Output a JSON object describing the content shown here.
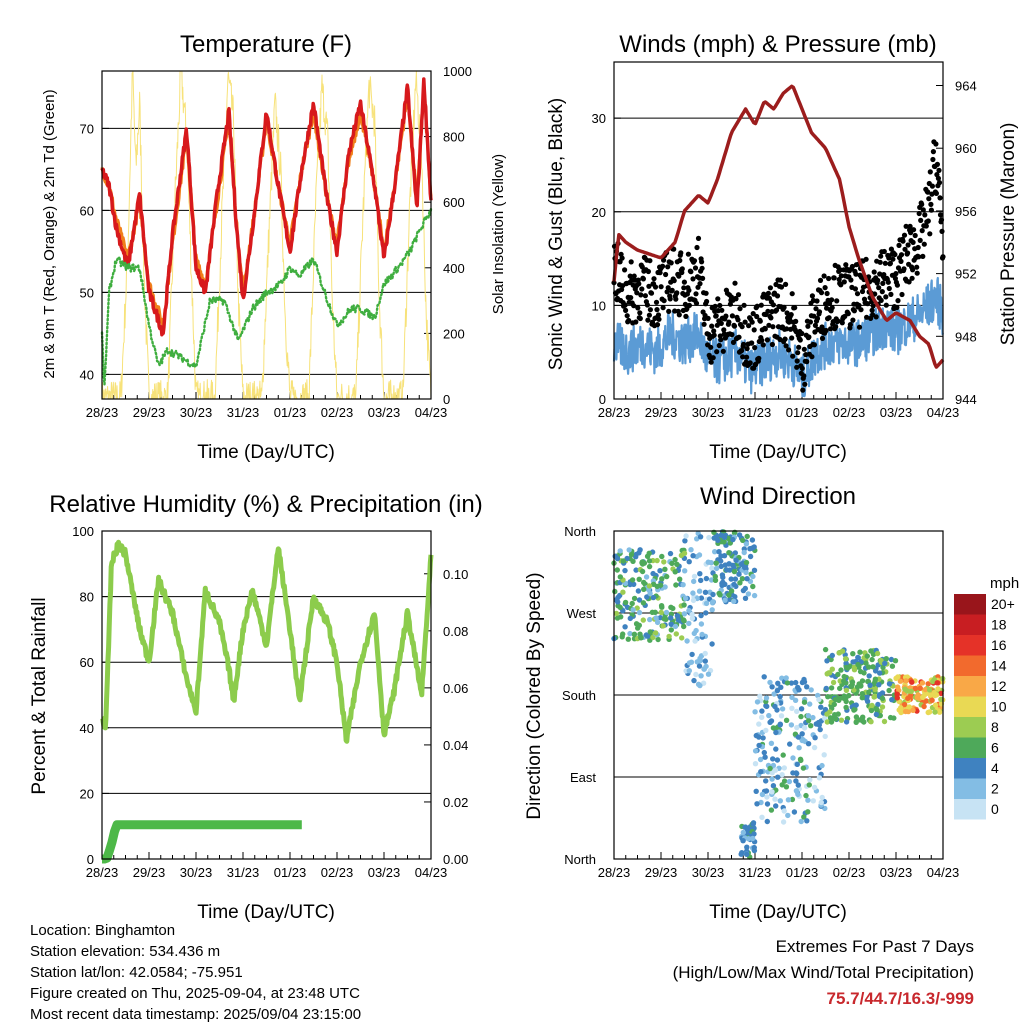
{
  "colors": {
    "temp_2m": "#d7191c",
    "temp_9m": "#f07f1a",
    "dewpoint": "#3fae3f",
    "solar": "#f7e27a",
    "wind": "#5b9bd5",
    "gust": "#000000",
    "pressure": "#9c1d1d",
    "rh": "#8ccc4c",
    "precip": "#4db848",
    "extremes": "#c8282d"
  },
  "charts": {
    "temperature": {
      "title": "Temperature (F)",
      "xlabel": "Time (Day/UTC)",
      "ylabel_left": "2m & 9m T (Red, Orange) & 2m Td (Green)",
      "ylabel_right": "Solar Insolation (Yellow)"
    },
    "wind": {
      "title": "Winds (mph) & Pressure (mb)",
      "xlabel": "Time (Day/UTC)",
      "ylabel_left": "Sonic Wind & Gust (Blue, Black)",
      "ylabel_right": "Station Pressure (Maroon)"
    },
    "humidity": {
      "title": "Relative Humidity (%) & Precipitation (in)",
      "xlabel": "Time (Day/UTC)",
      "ylabel_left": "Percent & Total Rainfall"
    },
    "direction": {
      "title": "Wind Direction",
      "xlabel": "Time (Day/UTC)",
      "ylabel_left": "Direction (Colored By Speed)",
      "colorbar_title": "mph"
    }
  },
  "chart_data": [
    {
      "type": "line",
      "title": "Temperature (F)",
      "xlabel": "Time (Day/UTC)",
      "ylabel": "2m & 9m T (Red, Orange) & 2m Td (Green)",
      "y2label": "Solar Insolation (Yellow)",
      "x_ticks": [
        "28/23",
        "29/23",
        "30/23",
        "31/23",
        "01/23",
        "02/23",
        "03/23",
        "04/23"
      ],
      "xlim": [
        0,
        7
      ],
      "ylim": [
        37,
        77
      ],
      "y_ticks": [
        40,
        50,
        60,
        70
      ],
      "y2lim": [
        0,
        1000
      ],
      "y2_ticks": [
        0,
        200,
        400,
        600,
        800,
        1000
      ],
      "grid": true,
      "series": [
        {
          "name": "2m T",
          "color": "#d7191c",
          "x": [
            0,
            0.15,
            0.3,
            0.55,
            0.8,
            1.0,
            1.3,
            1.5,
            1.8,
            2.0,
            2.2,
            2.45,
            2.7,
            2.85,
            3.0,
            3.25,
            3.5,
            3.75,
            4.0,
            4.25,
            4.5,
            4.8,
            5.0,
            5.25,
            5.5,
            5.8,
            6.0,
            6.25,
            6.5,
            6.7,
            6.85,
            7.0
          ],
          "y": [
            65,
            63,
            58,
            53,
            62,
            50,
            45,
            57,
            70,
            53,
            50,
            62,
            72,
            59,
            49,
            60,
            72,
            63,
            55,
            65,
            73,
            61,
            55,
            67,
            73,
            63,
            54,
            64,
            75,
            60,
            76,
            61
          ]
        },
        {
          "name": "9m T",
          "color": "#f07f1a",
          "x": [
            0,
            0.15,
            0.3,
            0.55,
            0.8,
            1.0,
            1.3,
            1.5,
            1.8,
            2.0,
            2.2,
            2.45,
            2.7,
            2.85,
            3.0,
            3.25,
            3.5,
            3.75,
            4.0,
            4.25,
            4.5,
            4.8,
            5.0,
            5.25,
            5.5,
            5.8,
            6.0,
            6.25,
            6.5,
            6.7,
            6.85,
            7.0
          ],
          "y": [
            65,
            63,
            59,
            54,
            61,
            51,
            46,
            56,
            69,
            54,
            51,
            61,
            71,
            59,
            50,
            60,
            71,
            63,
            56,
            65,
            72,
            61,
            56,
            66,
            72,
            63,
            55,
            64,
            74,
            61,
            75,
            61
          ]
        },
        {
          "name": "2m Td",
          "color": "#3fae3f",
          "x": [
            0,
            0.05,
            0.15,
            0.3,
            0.55,
            0.8,
            1.0,
            1.2,
            1.4,
            1.7,
            2.0,
            2.3,
            2.6,
            2.9,
            3.2,
            3.5,
            3.8,
            4.0,
            4.2,
            4.5,
            4.8,
            5.0,
            5.3,
            5.5,
            5.8,
            6.0,
            6.3,
            6.55,
            6.8,
            7.0
          ],
          "y": [
            45,
            38,
            50,
            54,
            53,
            53,
            46,
            41,
            43,
            42,
            41,
            49,
            49,
            44,
            48,
            50,
            51,
            53,
            52,
            54,
            49,
            46,
            48,
            48,
            47,
            51,
            53,
            55,
            58,
            60
          ]
        },
        {
          "name": "Solar Insolation",
          "axis": "y2",
          "color": "#f7e27a",
          "x": [
            0,
            0.4,
            0.55,
            0.65,
            0.72,
            0.8,
            0.9,
            1.0,
            1.2,
            1.4,
            1.55,
            1.68,
            1.8,
            1.9,
            2.0,
            2.15,
            2.4,
            2.55,
            2.68,
            2.8,
            2.9,
            3.0,
            3.15,
            3.4,
            3.55,
            3.68,
            3.8,
            3.9,
            4.0,
            4.15,
            4.4,
            4.55,
            4.68,
            4.8,
            4.9,
            5.0,
            5.15,
            5.4,
            5.55,
            5.68,
            5.8,
            5.9,
            6.0,
            6.15,
            6.4,
            6.55,
            6.68,
            6.8,
            6.9,
            7.0
          ],
          "y": [
            0,
            0,
            450,
            1000,
            700,
            900,
            350,
            0,
            0,
            0,
            600,
            1000,
            800,
            400,
            0,
            0,
            0,
            550,
            980,
            850,
            300,
            0,
            0,
            0,
            500,
            900,
            700,
            250,
            0,
            0,
            0,
            600,
            950,
            800,
            300,
            0,
            0,
            0,
            550,
            950,
            850,
            300,
            0,
            0,
            0,
            600,
            980,
            750,
            250,
            0
          ]
        }
      ]
    },
    {
      "type": "line",
      "title": "Winds (mph) & Pressure (mb)",
      "xlabel": "Time (Day/UTC)",
      "ylabel": "Sonic Wind & Gust (Blue, Black)",
      "y2label": "Station Pressure (Maroon)",
      "x_ticks": [
        "28/23",
        "29/23",
        "30/23",
        "31/23",
        "01/23",
        "02/23",
        "03/23",
        "04/23"
      ],
      "xlim": [
        0,
        7
      ],
      "ylim": [
        0,
        36
      ],
      "y_ticks": [
        0,
        10,
        20,
        30
      ],
      "y2lim": [
        944,
        965.5
      ],
      "y2_ticks": [
        944,
        948,
        952,
        956,
        960,
        964
      ],
      "grid": true,
      "series": [
        {
          "name": "Sonic Wind",
          "color": "#5b9bd5",
          "x": [
            0,
            0.3,
            0.6,
            0.9,
            1.2,
            1.5,
            1.8,
            2.0,
            2.3,
            2.6,
            2.9,
            3.2,
            3.5,
            3.8,
            4.0,
            4.3,
            4.6,
            4.9,
            5.2,
            5.5,
            5.8,
            6.0,
            6.2,
            6.5,
            6.7,
            6.85,
            7.0
          ],
          "y": [
            6,
            5,
            6,
            5,
            7,
            6,
            7,
            4,
            4,
            5,
            3,
            4,
            5,
            4,
            2,
            5,
            6,
            6,
            6,
            7,
            8,
            7,
            8,
            9,
            10,
            11,
            9
          ]
        },
        {
          "name": "Gust",
          "color": "#000000",
          "x": [
            0,
            0.3,
            0.6,
            0.9,
            1.2,
            1.5,
            1.8,
            2.0,
            2.3,
            2.6,
            2.9,
            3.2,
            3.5,
            3.8,
            4.0,
            4.3,
            4.6,
            4.9,
            5.2,
            5.5,
            5.8,
            6.0,
            6.2,
            6.5,
            6.7,
            6.85,
            7.0
          ],
          "y": [
            14,
            11,
            12,
            11,
            13,
            12,
            14,
            7,
            8,
            9,
            6,
            8,
            10,
            8,
            4,
            9,
            11,
            11,
            11,
            12,
            13,
            13,
            15,
            17,
            20,
            26,
            16
          ]
        },
        {
          "name": "Station Pressure",
          "axis": "y2",
          "color": "#9c1d1d",
          "x": [
            0,
            0.1,
            0.25,
            0.5,
            0.8,
            1.0,
            1.3,
            1.5,
            1.8,
            2.0,
            2.2,
            2.5,
            2.8,
            3.0,
            3.2,
            3.4,
            3.6,
            3.8,
            4.0,
            4.2,
            4.5,
            4.8,
            5.0,
            5.2,
            5.5,
            5.8,
            6.0,
            6.3,
            6.5,
            6.7,
            6.85,
            7.0
          ],
          "y": [
            951.5,
            954.5,
            954,
            953.5,
            953.2,
            953,
            954,
            956,
            957,
            956.5,
            958,
            961,
            962.5,
            961.5,
            963,
            962.5,
            963.5,
            964,
            962.5,
            961,
            960,
            958,
            955,
            953,
            950.5,
            949,
            949.5,
            949,
            948,
            947.5,
            946,
            946.5
          ]
        }
      ]
    },
    {
      "type": "line",
      "title": "Relative Humidity (%) & Precipitation (in)",
      "xlabel": "Time (Day/UTC)",
      "ylabel": "Percent & Total Rainfall",
      "x_ticks": [
        "28/23",
        "29/23",
        "30/23",
        "31/23",
        "01/23",
        "02/23",
        "03/23",
        "04/23"
      ],
      "xlim": [
        0,
        7
      ],
      "ylim": [
        0,
        100
      ],
      "y_ticks": [
        0,
        20,
        40,
        60,
        80,
        100
      ],
      "y2lim": [
        0,
        0.115
      ],
      "y2_ticks": [
        0.0,
        0.02,
        0.04,
        0.06,
        0.08,
        0.1
      ],
      "grid": true,
      "series": [
        {
          "name": "Relative Humidity",
          "color": "#8ccc4c",
          "x": [
            0,
            0.08,
            0.2,
            0.35,
            0.5,
            0.8,
            1.0,
            1.2,
            1.5,
            1.8,
            2.0,
            2.2,
            2.5,
            2.7,
            2.8,
            3.0,
            3.2,
            3.5,
            3.75,
            4.0,
            4.2,
            4.5,
            4.8,
            5.0,
            5.2,
            5.5,
            5.8,
            6.0,
            6.2,
            6.5,
            6.8,
            7.0
          ],
          "y": [
            43,
            40,
            90,
            96,
            93,
            70,
            60,
            85,
            75,
            55,
            45,
            82,
            72,
            58,
            48,
            70,
            82,
            65,
            95,
            70,
            48,
            80,
            72,
            60,
            36,
            60,
            75,
            38,
            50,
            75,
            50,
            92
          ]
        },
        {
          "name": "Total Rainfall",
          "axis": "y2",
          "color": "#4db848",
          "x": [
            0,
            0.1,
            0.2,
            0.3,
            0.5,
            1.0,
            2.0,
            3.0,
            4.0,
            4.25
          ],
          "y": [
            0.0,
            0.0,
            0.005,
            0.012,
            0.012,
            0.012,
            0.012,
            0.012,
            0.012,
            0.012
          ]
        }
      ]
    },
    {
      "type": "scatter",
      "title": "Wind Direction",
      "xlabel": "Time (Day/UTC)",
      "ylabel": "Direction (Colored By Speed)",
      "x_ticks": [
        "28/23",
        "29/23",
        "30/23",
        "31/23",
        "01/23",
        "02/23",
        "03/23",
        "04/23"
      ],
      "xlim": [
        0,
        7
      ],
      "ylim": [
        0,
        360
      ],
      "y_tick_labels": [
        "North",
        "East",
        "South",
        "West",
        "North"
      ],
      "y_tick_values": [
        0,
        90,
        180,
        270,
        360
      ],
      "grid": true,
      "colorbar": {
        "title": "mph",
        "labels": [
          "20+",
          "18",
          "16",
          "14",
          "12",
          "10",
          "8",
          "6",
          "4",
          "2",
          "0"
        ],
        "colors": [
          "#99151b",
          "#c81e22",
          "#e53228",
          "#f26a2d",
          "#f9a847",
          "#e9d954",
          "#9ccc52",
          "#4ea95a",
          "#3f82c0",
          "#83bde4",
          "#c7e3f4"
        ]
      },
      "clusters": [
        {
          "x": [
            0.0,
            1.5
          ],
          "y": [
            240,
            340
          ],
          "speed": [
            2,
            8
          ]
        },
        {
          "x": [
            1.5,
            2.1
          ],
          "y": [
            190,
            360
          ],
          "speed": [
            0,
            4
          ]
        },
        {
          "x": [
            2.1,
            3.0
          ],
          "y": [
            280,
            360
          ],
          "speed": [
            2,
            6
          ]
        },
        {
          "x": [
            2.7,
            3.0
          ],
          "y": [
            0,
            40
          ],
          "speed": [
            2,
            6
          ]
        },
        {
          "x": [
            3.0,
            4.5
          ],
          "y": [
            40,
            200
          ],
          "speed": [
            0,
            6
          ]
        },
        {
          "x": [
            4.5,
            6.0
          ],
          "y": [
            150,
            230
          ],
          "speed": [
            4,
            8
          ]
        },
        {
          "x": [
            6.0,
            7.0
          ],
          "y": [
            160,
            200
          ],
          "speed": [
            8,
            16
          ]
        }
      ]
    }
  ],
  "station_info": {
    "location": "Location: Binghamton",
    "elevation": "Station elevation: 534.436 m",
    "latlon": "Station lat/lon: 42.0584; -75.951",
    "created": "Figure created on Thu, 2025-09-04, at 23:48 UTC",
    "latest": "Most recent data timestamp: 2025/09/04 23:15:00"
  },
  "extremes": {
    "title": "Extremes For Past 7 Days",
    "subtitle": "(High/Low/Max Wind/Total Precipitation)",
    "values": "75.7/44.7/16.3/-999"
  }
}
